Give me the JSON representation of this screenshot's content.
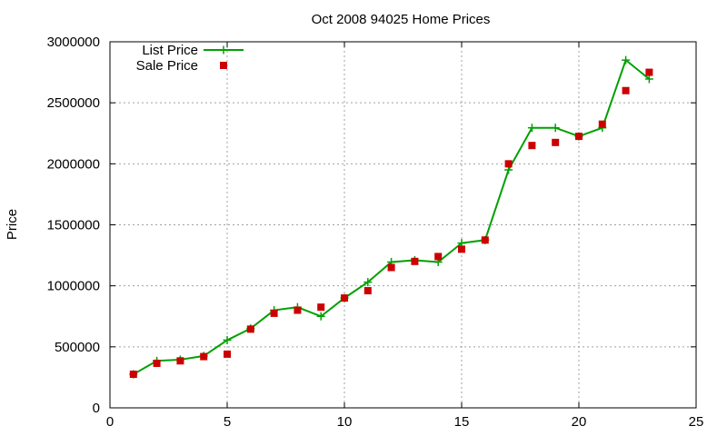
{
  "chart_data": {
    "type": "line",
    "title": "Oct 2008 94025 Home Prices",
    "xlabel": "",
    "ylabel": "Price",
    "xlim": [
      0,
      25
    ],
    "ylim": [
      0,
      3000000
    ],
    "x_ticks": [
      0,
      5,
      10,
      15,
      20,
      25
    ],
    "y_ticks": [
      0,
      500000,
      1000000,
      1500000,
      2000000,
      2500000,
      3000000
    ],
    "grid": true,
    "legend_position": "top-left",
    "series": [
      {
        "name": "List Price",
        "style": "line-with-plus-markers",
        "color": "#00a000",
        "x": [
          1,
          2,
          3,
          4,
          5,
          6,
          7,
          8,
          9,
          10,
          11,
          12,
          13,
          14,
          15,
          16,
          17,
          18,
          19,
          20,
          21,
          22,
          23
        ],
        "values": [
          275000,
          385000,
          395000,
          425000,
          555000,
          650000,
          800000,
          825000,
          750000,
          900000,
          1030000,
          1195000,
          1210000,
          1195000,
          1350000,
          1375000,
          1950000,
          2295000,
          2295000,
          2225000,
          2295000,
          2850000,
          2695000
        ]
      },
      {
        "name": "Sale Price",
        "style": "square-markers",
        "color": "#cc0000",
        "x": [
          1,
          2,
          3,
          4,
          5,
          6,
          7,
          8,
          9,
          10,
          11,
          12,
          13,
          14,
          15,
          16,
          17,
          18,
          19,
          20,
          21,
          22,
          23
        ],
        "values": [
          275000,
          365000,
          385000,
          420000,
          440000,
          645000,
          775000,
          800000,
          825000,
          900000,
          960000,
          1150000,
          1200000,
          1240000,
          1300000,
          1375000,
          2000000,
          2150000,
          2175000,
          2225000,
          2325000,
          2600000,
          2750000
        ]
      }
    ]
  }
}
